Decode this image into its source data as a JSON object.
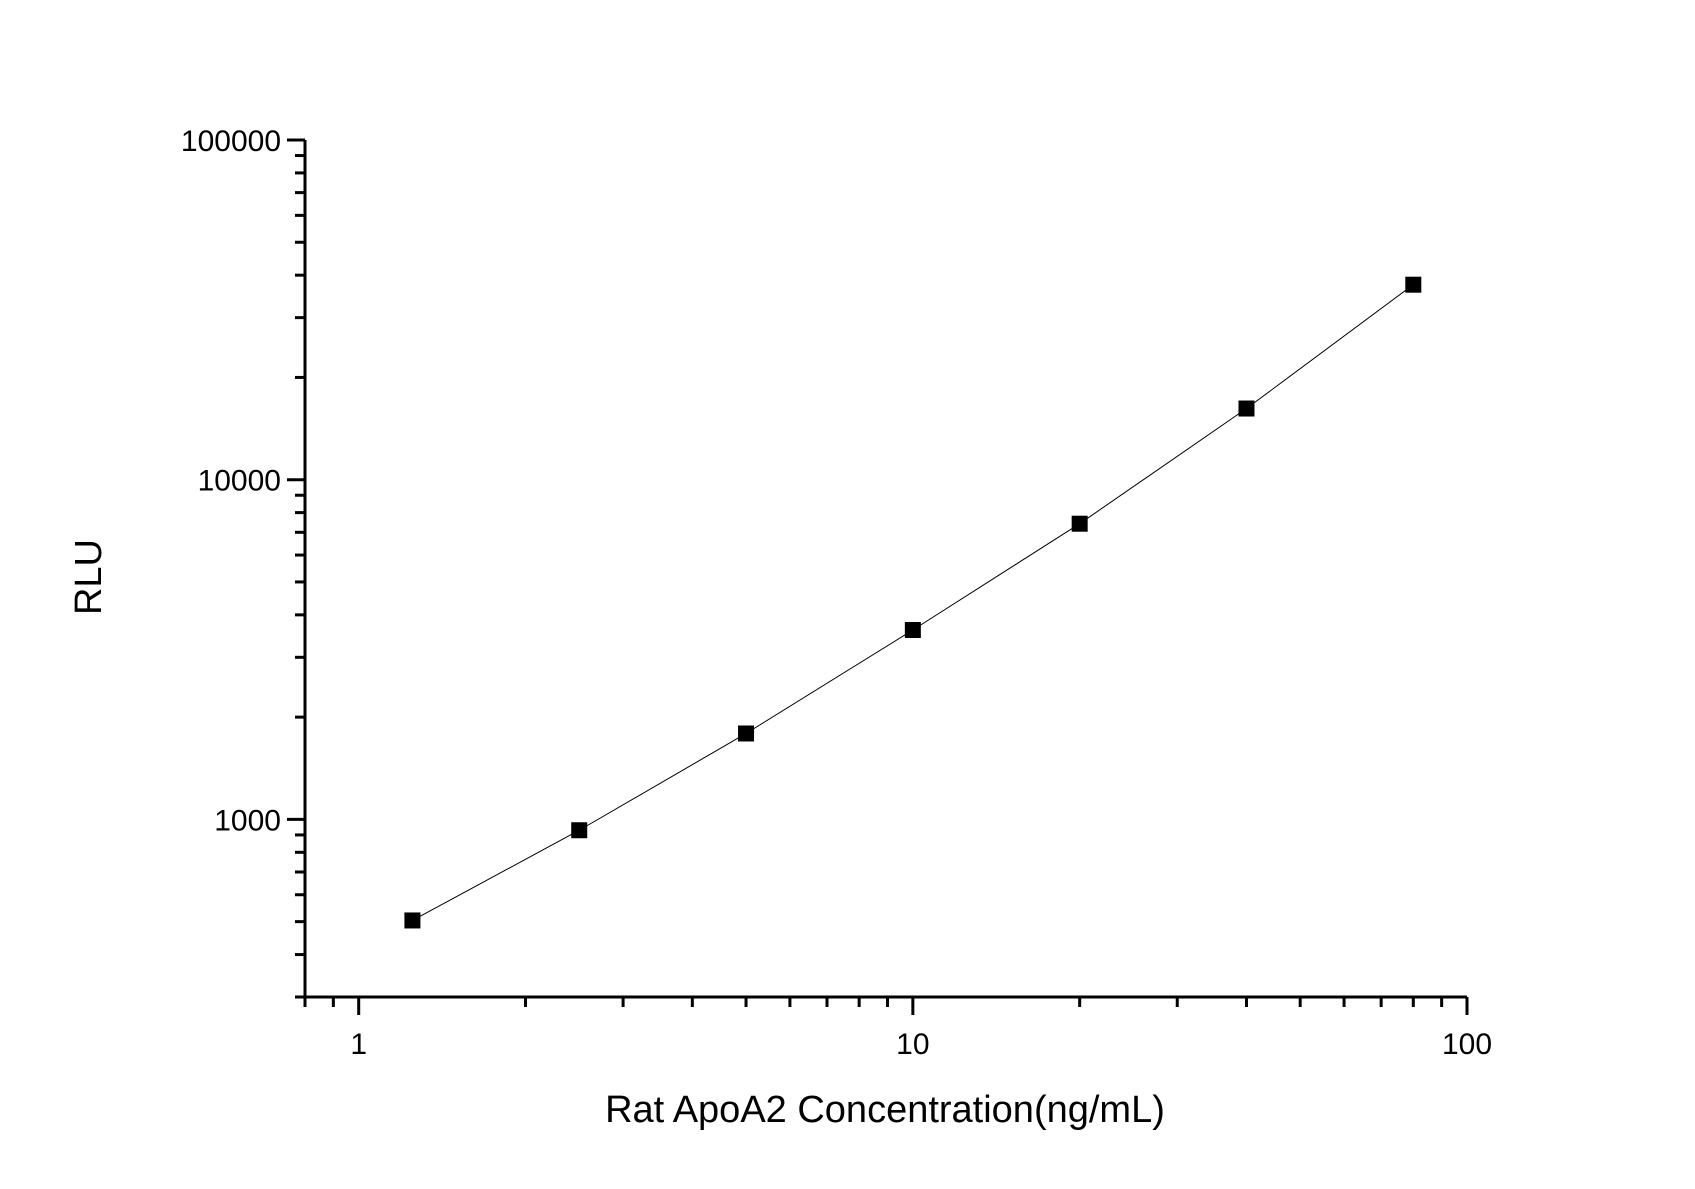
{
  "chart_data": {
    "type": "line",
    "title": "",
    "xlabel": "Rat ApoA2 Concentration(ng/mL)",
    "ylabel": "RLU",
    "x_scale": "log",
    "y_scale": "log",
    "xlim": [
      0.8,
      100
    ],
    "ylim": [
      300,
      100000
    ],
    "x_ticks": [
      {
        "value": 1,
        "label": "1"
      },
      {
        "value": 10,
        "label": "10"
      },
      {
        "value": 100,
        "label": "100"
      }
    ],
    "y_ticks": [
      {
        "value": 1000,
        "label": "1000"
      },
      {
        "value": 10000,
        "label": "10000"
      },
      {
        "value": 100000,
        "label": "100000"
      }
    ],
    "grid": false,
    "marker": "square",
    "color": "#000000",
    "series": [
      {
        "x": [
          1.25,
          2.5,
          5,
          10,
          20,
          40,
          80
        ],
        "y": [
          504,
          929,
          1790,
          3610,
          7420,
          16200,
          37500
        ]
      }
    ]
  }
}
